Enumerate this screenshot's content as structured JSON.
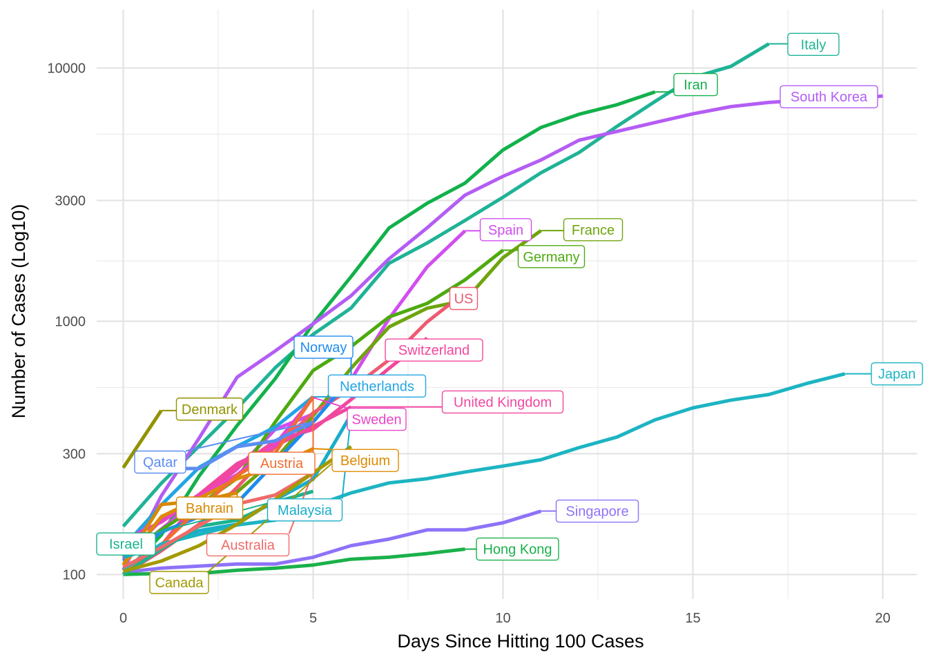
{
  "chart_data": {
    "type": "line",
    "title": "",
    "xlabel": "Days Since Hitting 100 Cases",
    "ylabel": "Number of Cases (Log10)",
    "x_scale": "linear",
    "y_scale": "log10",
    "xlim": [
      -0.7,
      20.9
    ],
    "ylim": [
      80,
      17000
    ],
    "x_ticks": [
      0,
      5,
      10,
      15,
      20
    ],
    "y_ticks": [
      100,
      300,
      1000,
      3000,
      10000
    ],
    "grid": true,
    "legend": "none (labels at line ends)",
    "series": [
      {
        "name": "Italy",
        "color": "#1FB396",
        "values": [
          [
            0,
            155
          ],
          [
            1,
            229
          ],
          [
            2,
            322
          ],
          [
            3,
            453
          ],
          [
            4,
            655
          ],
          [
            5,
            888
          ],
          [
            6,
            1128
          ],
          [
            7,
            1694
          ],
          [
            8,
            2036
          ],
          [
            9,
            2502
          ],
          [
            10,
            3089
          ],
          [
            11,
            3858
          ],
          [
            12,
            4636
          ],
          [
            13,
            5883
          ],
          [
            14,
            7375
          ],
          [
            15,
            9172
          ],
          [
            16,
            10149
          ],
          [
            17,
            12462
          ]
        ],
        "label": {
          "x": 17.5,
          "y": 12400,
          "anchor": "start"
        }
      },
      {
        "name": "Iran",
        "color": "#12B14B",
        "values": [
          [
            0,
            100
          ],
          [
            1,
            143
          ],
          [
            2,
            245
          ],
          [
            3,
            388
          ],
          [
            4,
            593
          ],
          [
            5,
            978
          ],
          [
            6,
            1501
          ],
          [
            7,
            2336
          ],
          [
            8,
            2922
          ],
          [
            9,
            3513
          ],
          [
            10,
            4747
          ],
          [
            11,
            5823
          ],
          [
            12,
            6566
          ],
          [
            13,
            7161
          ],
          [
            14,
            8042
          ]
        ],
        "label": {
          "x": 14.5,
          "y": 8600,
          "anchor": "start"
        }
      },
      {
        "name": "South Korea",
        "color": "#B45DF4",
        "values": [
          [
            0,
            104
          ],
          [
            1,
            204
          ],
          [
            2,
            346
          ],
          [
            3,
            602
          ],
          [
            4,
            763
          ],
          [
            5,
            977
          ],
          [
            6,
            1261
          ],
          [
            7,
            1766
          ],
          [
            8,
            2337
          ],
          [
            9,
            3150
          ],
          [
            10,
            3736
          ],
          [
            11,
            4335
          ],
          [
            12,
            5186
          ],
          [
            13,
            5621
          ],
          [
            14,
            6088
          ],
          [
            15,
            6593
          ],
          [
            16,
            7041
          ],
          [
            17,
            7314
          ],
          [
            18,
            7478
          ],
          [
            19,
            7513
          ],
          [
            20,
            7755
          ]
        ],
        "label": {
          "x": 17.3,
          "y": 7700,
          "anchor": "start"
        }
      },
      {
        "name": "Spain",
        "color": "#D14EF0",
        "values": [
          [
            0,
            114
          ],
          [
            1,
            151
          ],
          [
            2,
            200
          ],
          [
            3,
            261
          ],
          [
            4,
            374
          ],
          [
            5,
            430
          ],
          [
            6,
            589
          ],
          [
            7,
            1024
          ],
          [
            8,
            1639
          ],
          [
            9,
            2277
          ]
        ],
        "label": {
          "x": 9.4,
          "y": 2300,
          "anchor": "start"
        }
      },
      {
        "name": "France",
        "color": "#6FA40E",
        "values": [
          [
            0,
            100
          ],
          [
            1,
            130
          ],
          [
            2,
            191
          ],
          [
            3,
            212
          ],
          [
            4,
            285
          ],
          [
            5,
            423
          ],
          [
            6,
            653
          ],
          [
            7,
            949
          ],
          [
            8,
            1126
          ],
          [
            9,
            1209
          ],
          [
            10,
            1784
          ],
          [
            11,
            2281
          ]
        ],
        "label": {
          "x": 11.6,
          "y": 2300,
          "anchor": "start"
        }
      },
      {
        "name": "Germany",
        "color": "#4EAA0F",
        "values": [
          [
            0,
            117
          ],
          [
            1,
            150
          ],
          [
            2,
            188
          ],
          [
            3,
            240
          ],
          [
            4,
            400
          ],
          [
            5,
            639
          ],
          [
            6,
            795
          ],
          [
            7,
            1040
          ],
          [
            8,
            1176
          ],
          [
            9,
            1457
          ],
          [
            10,
            1908
          ]
        ],
        "label": {
          "x": 10.4,
          "y": 1800,
          "anchor": "start"
        }
      },
      {
        "name": "US",
        "color": "#EE5A70",
        "values": [
          [
            0,
            100
          ],
          [
            1,
            124
          ],
          [
            2,
            158
          ],
          [
            3,
            221
          ],
          [
            4,
            319
          ],
          [
            5,
            435
          ],
          [
            6,
            541
          ],
          [
            7,
            704
          ],
          [
            8,
            994
          ],
          [
            9,
            1301
          ]
        ],
        "label": {
          "x": 8.6,
          "y": 1230,
          "anchor": "start"
        }
      },
      {
        "name": "Switzerland",
        "color": "#F2479C",
        "values": [
          [
            0,
            100
          ],
          [
            1,
            130
          ],
          [
            2,
            200
          ],
          [
            3,
            264
          ],
          [
            4,
            337
          ],
          [
            5,
            374
          ],
          [
            6,
            491
          ],
          [
            7,
            652
          ],
          [
            8,
            858
          ]
        ],
        "label": {
          "x": 6.9,
          "y": 770,
          "anchor": "start"
        }
      },
      {
        "name": "Norway",
        "color": "#1E8BF0",
        "values": [
          [
            0,
            113
          ],
          [
            1,
            147
          ],
          [
            2,
            169
          ],
          [
            3,
            192
          ],
          [
            4,
            277
          ],
          [
            5,
            400
          ],
          [
            6,
            598
          ]
        ],
        "label": {
          "x": 4.5,
          "y": 790,
          "anchor": "start"
        }
      },
      {
        "name": "Netherlands",
        "color": "#22A5E3",
        "values": [
          [
            0,
            128
          ],
          [
            1,
            188
          ],
          [
            2,
            265
          ],
          [
            3,
            321
          ],
          [
            4,
            382
          ],
          [
            5,
            503
          ]
        ],
        "label": {
          "x": 5.4,
          "y": 555,
          "anchor": "start"
        }
      },
      {
        "name": "United Kingdom",
        "color": "#F0479F",
        "values": [
          [
            0,
            116
          ],
          [
            1,
            164
          ],
          [
            2,
            207
          ],
          [
            3,
            274
          ],
          [
            4,
            322
          ],
          [
            5,
            384
          ],
          [
            6,
            459
          ]
        ],
        "label": {
          "x": 8.4,
          "y": 480,
          "anchor": "start"
        }
      },
      {
        "name": "Sweden",
        "color": "#E945C8",
        "values": [
          [
            0,
            137
          ],
          [
            1,
            161
          ],
          [
            2,
            203
          ],
          [
            3,
            248
          ],
          [
            4,
            326
          ],
          [
            5,
            500
          ]
        ],
        "label": {
          "x": 5.9,
          "y": 410,
          "anchor": "start"
        }
      },
      {
        "name": "Denmark",
        "color": "#929300",
        "values": [
          [
            0,
            264
          ],
          [
            1,
            444
          ]
        ],
        "label": {
          "x": 1.4,
          "y": 450,
          "anchor": "start"
        }
      },
      {
        "name": "Belgium",
        "color": "#DE8B00",
        "values": [
          [
            0,
            109
          ],
          [
            1,
            169
          ],
          [
            2,
            200
          ],
          [
            3,
            239
          ],
          [
            4,
            267
          ],
          [
            5,
            314
          ]
        ],
        "label": {
          "x": 5.5,
          "y": 282,
          "anchor": "start"
        }
      },
      {
        "name": "Austria",
        "color": "#F06E31",
        "values": [
          [
            0,
            104
          ],
          [
            1,
            131
          ],
          [
            2,
            182
          ],
          [
            3,
            246
          ],
          [
            4,
            302
          ],
          [
            5,
            504
          ]
        ],
        "label": {
          "x": 3.3,
          "y": 275,
          "anchor": "start"
        }
      },
      {
        "name": "Qatar",
        "color": "#5C8DF2",
        "values": [
          [
            0,
            24
          ],
          [
            1,
            262
          ],
          [
            2,
            262
          ],
          [
            3,
            320
          ],
          [
            4,
            337
          ],
          [
            5,
            401
          ]
        ],
        "label": {
          "x": 0.3,
          "y": 278,
          "anchor": "start"
        }
      },
      {
        "name": "Bahrain",
        "color": "#D88800",
        "values": [
          [
            0,
            109
          ],
          [
            1,
            189
          ],
          [
            2,
            195
          ],
          [
            3,
            210
          ]
        ],
        "label": {
          "x": 1.4,
          "y": 183,
          "anchor": "start"
        }
      },
      {
        "name": "Malaysia",
        "color": "#19ADCA",
        "values": [
          [
            0,
            117
          ],
          [
            1,
            129
          ],
          [
            2,
            149
          ],
          [
            3,
            158
          ],
          [
            4,
            197
          ],
          [
            5,
            238
          ],
          [
            6,
            428
          ]
        ],
        "label": {
          "x": 3.8,
          "y": 180,
          "anchor": "start"
        }
      },
      {
        "name": "Japan",
        "color": "#1DB4C2",
        "values": [
          [
            0,
            105
          ],
          [
            1,
            132
          ],
          [
            2,
            144
          ],
          [
            3,
            157
          ],
          [
            4,
            164
          ],
          [
            5,
            186
          ],
          [
            6,
            210
          ],
          [
            7,
            230
          ],
          [
            8,
            239
          ],
          [
            9,
            254
          ],
          [
            10,
            268
          ],
          [
            11,
            284
          ],
          [
            12,
            317
          ],
          [
            13,
            349
          ],
          [
            14,
            408
          ],
          [
            15,
            455
          ],
          [
            16,
            488
          ],
          [
            17,
            514
          ],
          [
            18,
            568
          ],
          [
            19,
            620
          ]
        ],
        "label": {
          "x": 19.7,
          "y": 620,
          "anchor": "start"
        }
      },
      {
        "name": "Singapore",
        "color": "#8E72F8",
        "values": [
          [
            0,
            102
          ],
          [
            1,
            106
          ],
          [
            2,
            108
          ],
          [
            3,
            110
          ],
          [
            4,
            110
          ],
          [
            5,
            117
          ],
          [
            6,
            130
          ],
          [
            7,
            138
          ],
          [
            8,
            150
          ],
          [
            9,
            150
          ],
          [
            10,
            160
          ],
          [
            11,
            178
          ]
        ],
        "label": {
          "x": 11.4,
          "y": 178,
          "anchor": "start"
        }
      },
      {
        "name": "Hong Kong",
        "color": "#1AB14A",
        "values": [
          [
            0,
            100
          ],
          [
            1,
            101
          ],
          [
            2,
            101
          ],
          [
            3,
            104
          ],
          [
            4,
            106
          ],
          [
            5,
            109
          ],
          [
            6,
            115
          ],
          [
            7,
            117
          ],
          [
            8,
            121
          ],
          [
            9,
            126
          ]
        ],
        "label": {
          "x": 9.3,
          "y": 126,
          "anchor": "start"
        }
      },
      {
        "name": "Israel",
        "color": "#1CB38F",
        "values": [
          [
            0,
            100
          ],
          [
            1,
            126
          ],
          [
            2,
            155
          ],
          [
            3,
            164
          ],
          [
            4,
            193
          ],
          [
            5,
            213
          ]
        ],
        "label": {
          "x": -0.7,
          "y": 132,
          "anchor": "start"
        }
      },
      {
        "name": "Australia",
        "color": "#F06A6A",
        "values": [
          [
            0,
            107
          ],
          [
            1,
            128
          ],
          [
            2,
            156
          ],
          [
            3,
            190
          ],
          [
            4,
            206
          ],
          [
            5,
            252
          ]
        ],
        "label": {
          "x": 2.2,
          "y": 131,
          "anchor": "start"
        }
      },
      {
        "name": "Canada",
        "color": "#A39A00",
        "values": [
          [
            0,
            103
          ],
          [
            1,
            113
          ],
          [
            2,
            130
          ],
          [
            3,
            158
          ],
          [
            4,
            198
          ],
          [
            5,
            252
          ],
          [
            6,
            320
          ]
        ],
        "label": {
          "x": 0.7,
          "y": 93,
          "anchor": "start"
        }
      }
    ]
  }
}
